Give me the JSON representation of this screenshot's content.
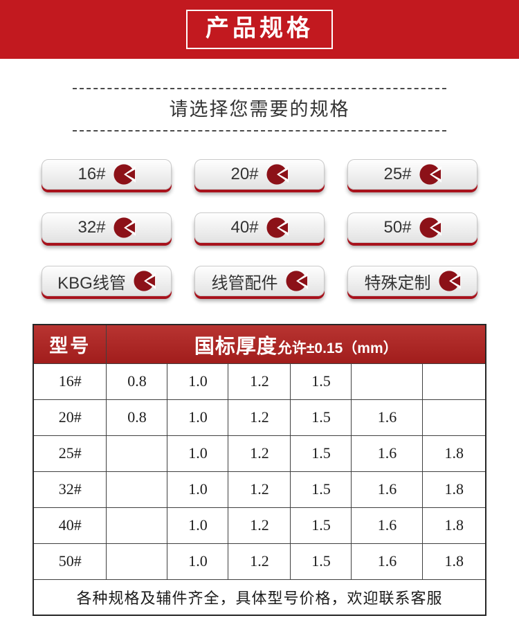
{
  "banner": {
    "title": "产品规格"
  },
  "selector": {
    "heading": "请选择您需要的规格"
  },
  "spec_buttons": {
    "icon": "pie-click-icon",
    "items": [
      {
        "id": "16",
        "label": "16#"
      },
      {
        "id": "20",
        "label": "20#"
      },
      {
        "id": "25",
        "label": "25#"
      },
      {
        "id": "32",
        "label": "32#"
      },
      {
        "id": "40",
        "label": "40#"
      },
      {
        "id": "50",
        "label": "50#"
      },
      {
        "id": "kbg-pipe",
        "label": "KBG线管"
      },
      {
        "id": "pipe-fittings",
        "label": "线管配件"
      },
      {
        "id": "custom-order",
        "label": "特殊定制"
      }
    ]
  },
  "table": {
    "header": {
      "model_col": "型号",
      "thickness_main": "国标厚度",
      "thickness_sub": "允许±0.15（mm）"
    },
    "rows": [
      {
        "model": "16#",
        "values": [
          "0.8",
          "1.0",
          "1.2",
          "1.5",
          "",
          ""
        ]
      },
      {
        "model": "20#",
        "values": [
          "0.8",
          "1.0",
          "1.2",
          "1.5",
          "1.6",
          ""
        ]
      },
      {
        "model": "25#",
        "values": [
          "",
          "1.0",
          "1.2",
          "1.5",
          "1.6",
          "1.8"
        ]
      },
      {
        "model": "32#",
        "values": [
          "",
          "1.0",
          "1.2",
          "1.5",
          "1.6",
          "1.8"
        ]
      },
      {
        "model": "40#",
        "values": [
          "",
          "1.0",
          "1.2",
          "1.5",
          "1.6",
          "1.8"
        ]
      },
      {
        "model": "50#",
        "values": [
          "",
          "1.0",
          "1.2",
          "1.5",
          "1.6",
          "1.8"
        ]
      }
    ],
    "note": "各种规格及辅件齐全，具体型号价格，欢迎联系客服"
  },
  "colors": {
    "banner_red": "#c2191f",
    "table_header_red": "#a82220",
    "icon_red": "#8c1118",
    "button_shadow_red": "#a8121c",
    "note_red": "#e0251a"
  }
}
